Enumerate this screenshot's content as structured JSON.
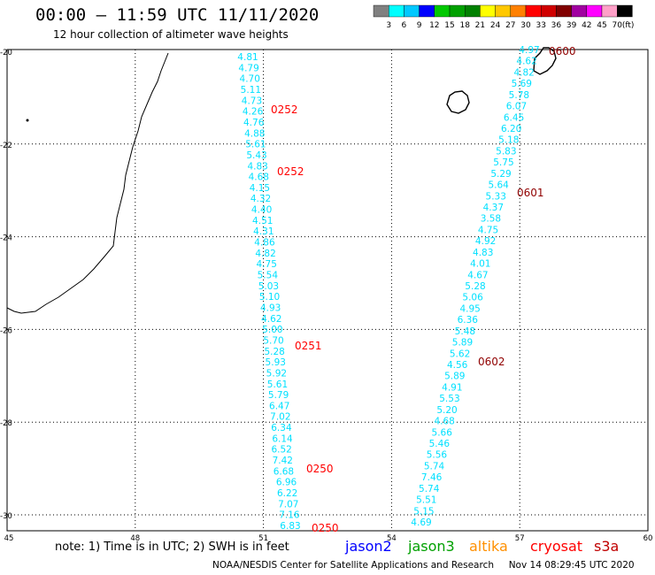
{
  "header": {
    "title": "00:00 – 11:59 UTC 11/11/2020",
    "subtitle": "12 hour collection of altimeter wave heights"
  },
  "legend": {
    "unit": "(ft)",
    "colors": [
      "#808080",
      "#00ffff",
      "#00c8ff",
      "#0000ff",
      "#00c800",
      "#00a000",
      "#008000",
      "#ffff00",
      "#ffc800",
      "#ff8000",
      "#ff0000",
      "#d00000",
      "#800000",
      "#a000a0",
      "#ff00ff",
      "#ffa0c8",
      "#000000"
    ],
    "labels": [
      "3",
      "6",
      "9",
      "12",
      "15",
      "18",
      "21",
      "24",
      "27",
      "30",
      "33",
      "36",
      "39",
      "42",
      "45",
      "70"
    ]
  },
  "axes": {
    "x_ticks": [
      "45",
      "48",
      "51",
      "54",
      "57",
      "60"
    ],
    "y_ticks": [
      "-20",
      "-22",
      "-24",
      "-26",
      "-28",
      "-30"
    ]
  },
  "tracks": {
    "left_values": [
      "4.81",
      "4.79",
      "4.70",
      "5.11",
      "4.73",
      "4.26",
      "4.76",
      "4.88",
      "5.61",
      "5.43",
      "4.83",
      "4.68",
      "4.15",
      "4.32",
      "4.40",
      "4.51",
      "4.31",
      "4.86",
      "4.82",
      "4.75",
      "5.54",
      "5.03",
      "5.10",
      "4.93",
      "4.62",
      "5.00",
      "5.70",
      "5.28",
      "5.93",
      "5.92",
      "5.61",
      "5.79",
      "6.47",
      "7.02",
      "6.34",
      "6.14",
      "6.52",
      "7.42",
      "6.68",
      "6.96",
      "6.22",
      "7.07",
      "7.16",
      "6.83"
    ],
    "right_values": [
      "4.97",
      "4.62",
      "4.82",
      "5.69",
      "5.78",
      "6.07",
      "6.45",
      "6.20",
      "5.18",
      "5.83",
      "5.75",
      "5.29",
      "5.64",
      "5.33",
      "4.37",
      "3.58",
      "4.75",
      "4.92",
      "4.83",
      "4.01",
      "4.67",
      "5.28",
      "5.06",
      "4.95",
      "6.36",
      "5.48",
      "5.89",
      "5.62",
      "4.56",
      "5.89",
      "4.91",
      "5.53",
      "5.20",
      "4.68",
      "5.66",
      "5.46",
      "5.56",
      "5.74",
      "7.46",
      "5.74",
      "5.51",
      "5.15",
      "4.69"
    ],
    "times_red": [
      "0252",
      "0252",
      "0251",
      "0250",
      "0250"
    ],
    "times_dark": [
      "0600",
      "0601",
      "0602"
    ]
  },
  "note": "note: 1) Time is in UTC; 2) SWH is in feet",
  "satellites": {
    "jason2": "jason2",
    "jason3": "jason3",
    "altika": "altika",
    "cryosat": "cryosat",
    "s3a": "s3a",
    "colors": {
      "jason2": "#0000ff",
      "jason3": "#00a000",
      "altika": "#ff9000",
      "cryosat": "#ff0000",
      "s3a": "#c00000"
    }
  },
  "footer": {
    "credit": "NOAA/NESDIS Center for Satellite Applications and Research",
    "timestamp": "Nov 14 08:29:45 UTC 2020"
  }
}
